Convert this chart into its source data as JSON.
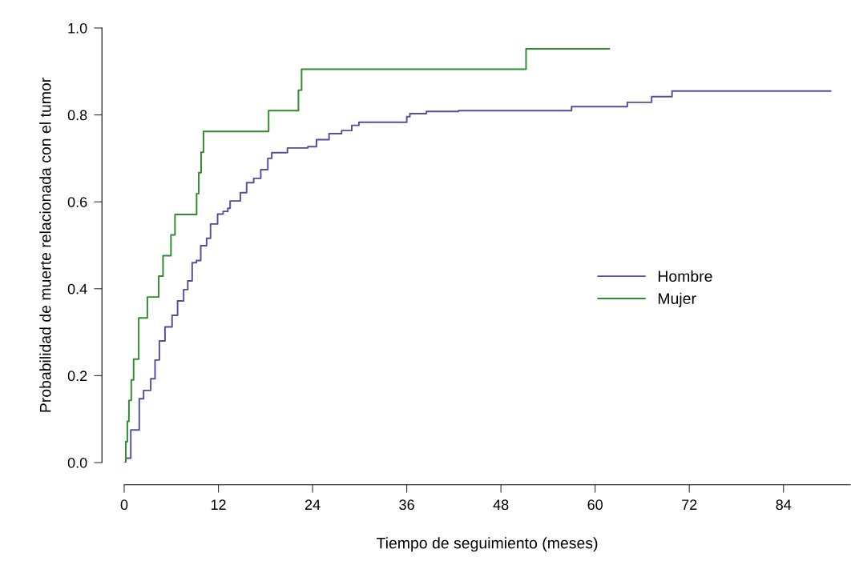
{
  "chart_data": {
    "type": "step",
    "xlabel": "Tiempo de seguimiento (meses)",
    "ylabel": "Probabilidad de muerte relacionada con el tumor",
    "xlim": [
      0,
      92.5
    ],
    "ylim": [
      0,
      1
    ],
    "xticks": [
      0,
      12,
      24,
      36,
      48,
      60,
      72,
      84
    ],
    "yticks": [
      {
        "value": 0,
        "label": "0.0"
      },
      {
        "value": 0.2,
        "label": "0.2"
      },
      {
        "value": 0.4,
        "label": "0.4"
      },
      {
        "value": 0.6,
        "label": "0.6"
      },
      {
        "value": 0.8,
        "label": "0.8"
      },
      {
        "value": 1,
        "label": "1.0"
      }
    ],
    "grid": false,
    "legend": "right",
    "line_style": "solid",
    "marker": "none",
    "series": [
      {
        "name": "Hombre",
        "color": "#50509c",
        "x": [
          0,
          0.2,
          0.84,
          1.92,
          2.47,
          3.38,
          3.93,
          4.48,
          5.2,
          6.1,
          6.8,
          7.57,
          8.1,
          8.66,
          9.2,
          9.75,
          10.5,
          11.0,
          11.9,
          12.6,
          13.2,
          13.5,
          14.8,
          15.6,
          16.5,
          17.4,
          18.3,
          18.8,
          20.8,
          23.4,
          24.5,
          26.1,
          27.7,
          29.0,
          29.9,
          36.0,
          36.4,
          38.5,
          42.6,
          57.0,
          64.1,
          67.2,
          69.8,
          90.0
        ],
        "values": [
          0,
          0.01,
          0.075,
          0.147,
          0.166,
          0.193,
          0.236,
          0.28,
          0.312,
          0.339,
          0.372,
          0.398,
          0.418,
          0.46,
          0.465,
          0.499,
          0.516,
          0.549,
          0.572,
          0.578,
          0.585,
          0.602,
          0.621,
          0.644,
          0.654,
          0.674,
          0.7,
          0.713,
          0.724,
          0.727,
          0.743,
          0.757,
          0.764,
          0.776,
          0.783,
          0.796,
          0.803,
          0.808,
          0.81,
          0.819,
          0.829,
          0.842,
          0.855,
          0.855
        ]
      },
      {
        "name": "Mujer",
        "color": "#2e8b2e",
        "x": [
          0,
          0.2,
          0.4,
          0.6,
          0.9,
          1.2,
          1.85,
          2.95,
          4.4,
          4.95,
          5.96,
          6.47,
          9.23,
          9.5,
          9.8,
          10.1,
          18.4,
          22.2,
          22.6,
          51.2,
          61.8
        ],
        "values": [
          0,
          0.048,
          0.095,
          0.143,
          0.19,
          0.238,
          0.333,
          0.381,
          0.429,
          0.476,
          0.524,
          0.571,
          0.619,
          0.667,
          0.714,
          0.762,
          0.81,
          0.857,
          0.905,
          0.952,
          0.952
        ]
      }
    ]
  }
}
